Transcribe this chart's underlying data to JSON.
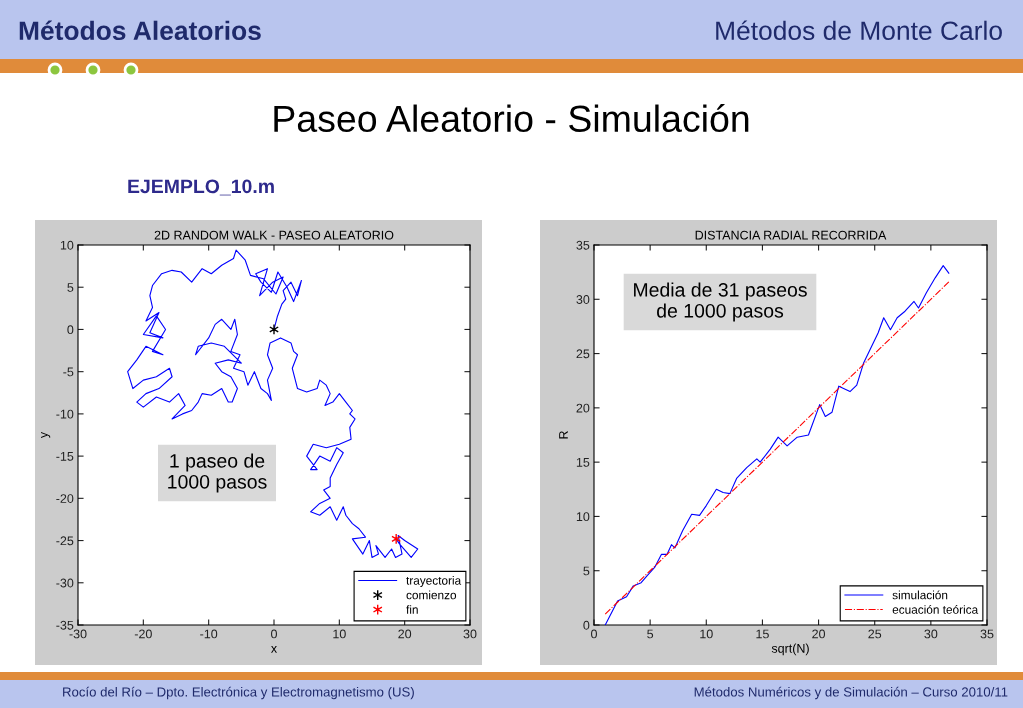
{
  "chart_data": [
    {
      "type": "line",
      "title": "2D RANDOM WALK - PASEO ALEATORIO",
      "xlabel": "x",
      "ylabel": "y",
      "xlim": [
        -30,
        30
      ],
      "xticks": [
        -30,
        -20,
        -10,
        0,
        10,
        20,
        30
      ],
      "ylim": [
        -35,
        10
      ],
      "yticks": [
        -35,
        -30,
        -25,
        -20,
        -15,
        -10,
        -5,
        0,
        5,
        10
      ],
      "legend": "bottom right",
      "annotations": [
        "Métodos Aleatorios",
        "Métodos de Monte Carlo",
        "Paseo Aleatorio - Simulación",
        "EJEMPLO_10.m",
        "1 paseo de\n1000 pasos"
      ],
      "series": [
        {
          "name": "trayectoria",
          "color": "#0000ff",
          "line_style": "solid",
          "x": [
            0,
            0.5,
            1.2,
            1.8,
            1.4,
            2.6,
            3.6,
            4.2,
            3.0,
            2.0,
            0.6,
            -0.4,
            -2.0,
            -2.8,
            -1.0,
            -2.2,
            -0.2,
            1.4,
            0.3,
            -1.6,
            -3.6,
            -4.4,
            -5.8,
            -6.2,
            -8.0,
            -9.6,
            -11.0,
            -12.6,
            -14.2,
            -15.6,
            -17.2,
            -18.6,
            -19.0,
            -18.6,
            -19.6,
            -17.6,
            -19.0,
            -17.0,
            -20.0,
            -18.0,
            -16.6,
            -18.6,
            -17.0,
            -19.6,
            -21.0,
            -22.4,
            -21.6,
            -20.0,
            -18.0,
            -16.0,
            -15.6,
            -17.6,
            -19.6,
            -21.0,
            -20.0,
            -18.0,
            -16.0,
            -14.6,
            -13.6,
            -15.6,
            -14.0,
            -12.6,
            -11.6,
            -11.0,
            -9.6,
            -8.0,
            -7.0,
            -6.4,
            -5.6,
            -6.6,
            -8.0,
            -9.0,
            -7.0,
            -5.0,
            -7.6,
            -9.6,
            -11.6,
            -12.0,
            -10.0,
            -9.0,
            -8.0,
            -6.6,
            -6.0,
            -5.6,
            -6.6,
            -5.2,
            -6.2,
            -4.6,
            -4.0,
            -3.0,
            -2.0,
            -1.0,
            -0.4,
            -1.0,
            -0.2,
            -1.0,
            -0.6,
            1.0,
            2.6,
            3.0,
            3.6,
            2.8,
            3.6,
            5.0,
            6.6,
            7.0,
            8.0,
            8.6,
            7.8,
            9.0,
            10.0,
            11.0,
            12.0,
            11.6,
            12.4,
            11.6,
            11.8,
            10.0,
            8.0,
            6.0,
            5.0,
            6.6,
            5.6,
            7.0,
            8.6,
            9.6,
            10.6,
            9.6,
            8.6,
            8.6,
            7.6,
            8.6,
            7.0,
            5.6,
            7.0,
            8.6,
            9.6,
            10.6,
            11.0,
            12.0,
            13.0,
            14.0,
            12.0,
            13.6,
            14.6,
            15.0,
            16.0,
            15.6,
            17.0,
            18.0,
            18.6,
            19.6,
            19.0,
            20.0,
            22.0,
            21.0,
            19.2,
            18.7
          ],
          "values": [
            0,
            1.5,
            3,
            3.6,
            4.6,
            5.6,
            4.0,
            5.8,
            3.3,
            5.0,
            6.8,
            4.4,
            5.6,
            6.6,
            7.2,
            4.0,
            5.6,
            6.2,
            4.2,
            6.0,
            6.4,
            8.2,
            9.4,
            8.4,
            7.6,
            6.6,
            7.2,
            5.6,
            6.8,
            7.0,
            6.6,
            5.2,
            4.0,
            2.6,
            1.0,
            2.0,
            -0.4,
            -1.0,
            -0.6,
            1.6,
            0.0,
            -2.6,
            -3.0,
            -2.0,
            -3.6,
            -5.0,
            -7.0,
            -6.0,
            -5.6,
            -4.6,
            -5.6,
            -7.0,
            -7.6,
            -8.6,
            -9.2,
            -8.0,
            -8.6,
            -7.6,
            -9.0,
            -10.6,
            -10.0,
            -9.6,
            -8.6,
            -7.6,
            -7.8,
            -7.0,
            -8.6,
            -8.6,
            -7.0,
            -5.6,
            -5.0,
            -4.0,
            -3.6,
            -4.0,
            -2.0,
            -1.6,
            -2.0,
            -3.0,
            -1.0,
            0.6,
            1.2,
            0.0,
            1.2,
            -0.6,
            -2.6,
            -3.0,
            -4.6,
            -5.0,
            -6.6,
            -5.0,
            -7.0,
            -7.6,
            -8.4,
            -6.0,
            -4.6,
            -3.0,
            -1.6,
            -1.0,
            -1.6,
            -2.6,
            -3.0,
            -4.6,
            -7.0,
            -7.4,
            -7.0,
            -6.0,
            -6.6,
            -7.6,
            -9.0,
            -8.6,
            -7.6,
            -8.6,
            -9.6,
            -10.0,
            -10.6,
            -11.6,
            -13.0,
            -13.6,
            -14.0,
            -13.6,
            -15.0,
            -16.6,
            -16.6,
            -15.0,
            -15.6,
            -14.0,
            -14.6,
            -16.0,
            -17.6,
            -18.6,
            -19.0,
            -20.0,
            -20.6,
            -21.6,
            -22.0,
            -21.0,
            -22.6,
            -21.0,
            -22.0,
            -23.0,
            -23.6,
            -24.6,
            -24.8,
            -26.6,
            -25.0,
            -27.0,
            -26.6,
            -25.6,
            -27.0,
            -26.0,
            -27.0,
            -26.6,
            -24.4,
            -25.0,
            -26.0,
            -27.0,
            -25.4,
            -24.8
          ]
        },
        {
          "name": "comienzo",
          "type": "scatter",
          "marker": "cross",
          "color": "#000000",
          "x": [
            0
          ],
          "values": [
            0
          ]
        },
        {
          "name": "fin",
          "type": "scatter",
          "marker": "cross",
          "color": "#ff0000",
          "x": [
            18.7
          ],
          "values": [
            -24.8
          ]
        }
      ]
    },
    {
      "type": "line",
      "title": "DISTANCIA RADIAL RECORRIDA",
      "xlabel": "sqrt(N)",
      "ylabel": "R",
      "xlim": [
        0,
        35
      ],
      "xticks": [
        0,
        5,
        10,
        15,
        20,
        25,
        30,
        35
      ],
      "ylim": [
        0,
        35
      ],
      "yticks": [
        0,
        5,
        10,
        15,
        20,
        25,
        30,
        35
      ],
      "legend": "bottom right",
      "annotations": [
        "Media de 31 paseos\nde 1000 pasos",
        "Rocío del Río – Dpto. Electrónica y Electromagnetismo (US)",
        "Métodos Numéricos y de Simulación – Curso 2010/11"
      ],
      "series": [
        {
          "name": "simulación",
          "color": "#0000ff",
          "line_style": "solid",
          "x": [
            1.0,
            2.1,
            2.9,
            3.5,
            4.2,
            4.7,
            5.4,
            6.0,
            6.5,
            6.9,
            7.2,
            7.9,
            8.7,
            9.4,
            10.0,
            10.9,
            11.5,
            12.1,
            12.7,
            13.6,
            14.5,
            14.8,
            15.7,
            16.4,
            17.2,
            18.1,
            19.1,
            20.1,
            20.6,
            21.2,
            21.8,
            22.8,
            23.4,
            24.0,
            24.6,
            25.3,
            25.8,
            26.4,
            27.0,
            27.7,
            28.5,
            28.9,
            29.6,
            30.4,
            31.1,
            31.6
          ],
          "values": [
            0,
            2.2,
            2.6,
            3.6,
            3.9,
            4.5,
            5.3,
            6.5,
            6.5,
            7.4,
            7.1,
            8.7,
            10.2,
            10.1,
            11.0,
            12.5,
            12.2,
            12.1,
            13.5,
            14.5,
            15.3,
            15.0,
            16.2,
            17.3,
            16.5,
            17.3,
            17.5,
            20.3,
            19.2,
            19.6,
            22.0,
            21.5,
            22.1,
            24.1,
            25.4,
            26.9,
            28.3,
            27.2,
            28.3,
            28.9,
            29.8,
            29.2,
            30.6,
            32.0,
            33.1,
            32.4
          ]
        },
        {
          "name": "ecuación teórica",
          "color": "#ff0000",
          "line_style": "dashdot",
          "x": [
            1,
            31.6
          ],
          "values": [
            1,
            31.6
          ]
        }
      ]
    }
  ]
}
